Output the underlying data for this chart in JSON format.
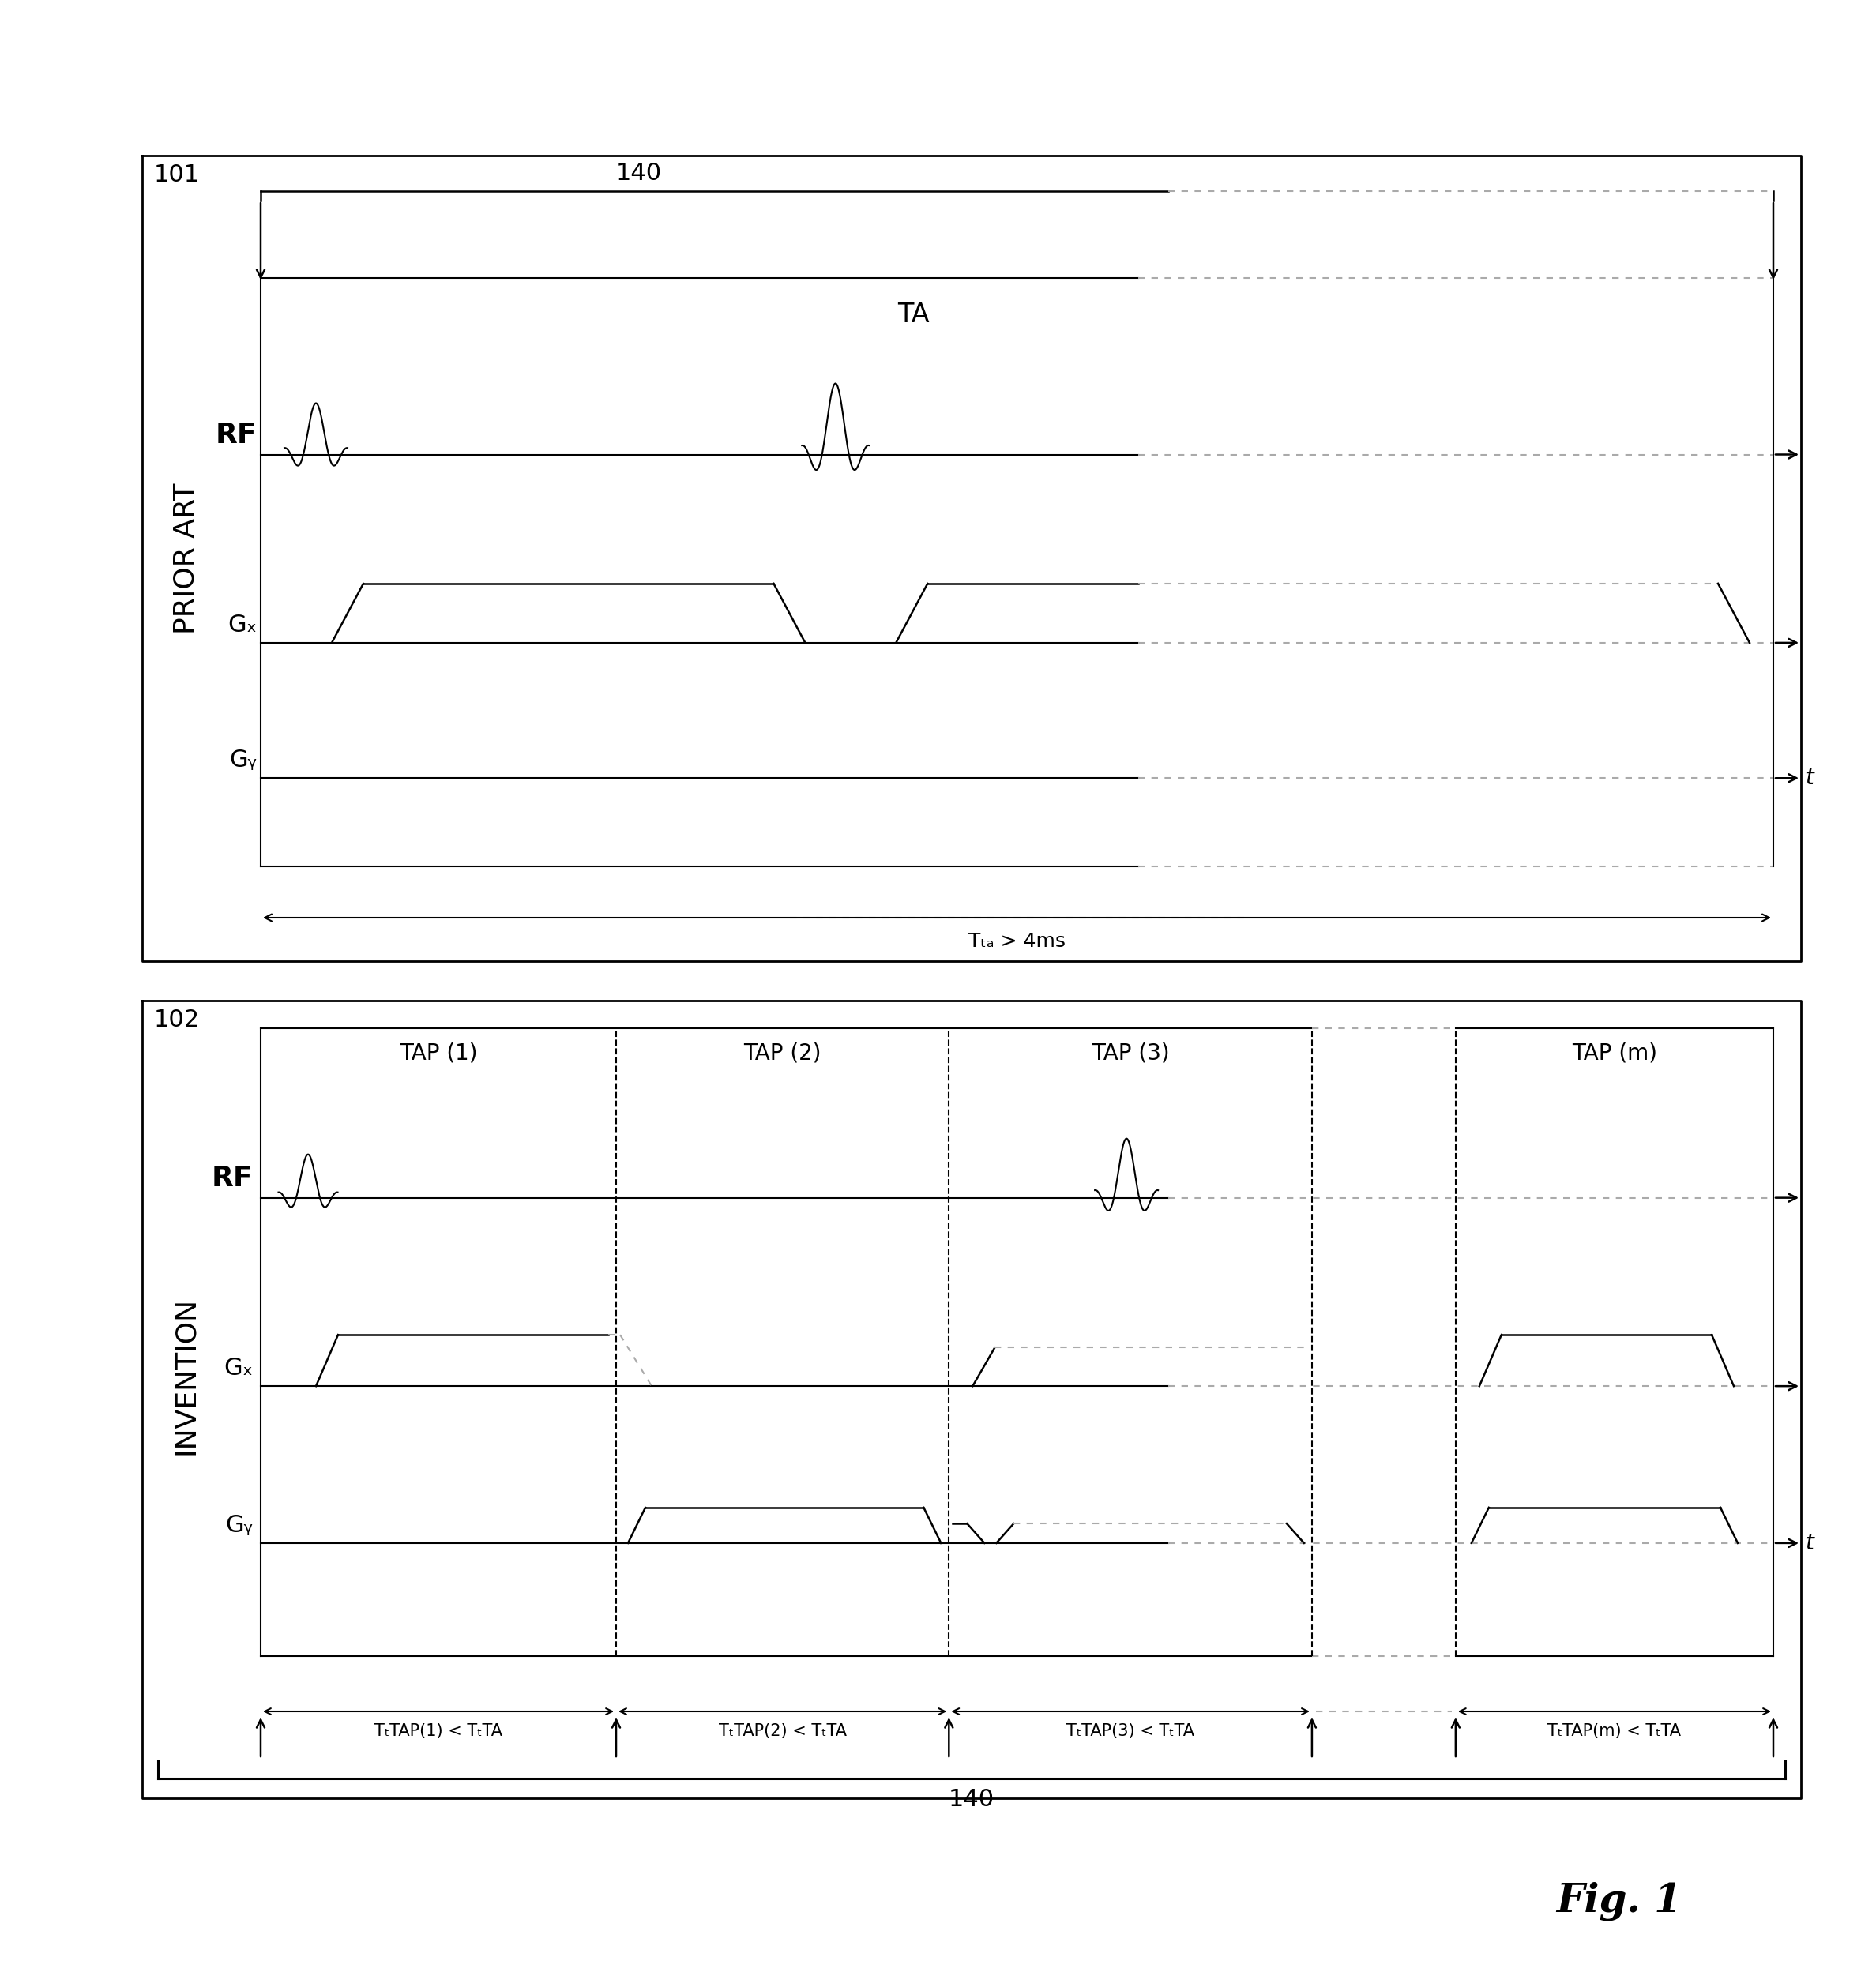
{
  "fig_width": 23.75,
  "fig_height": 24.97,
  "bg_color": "#ffffff",
  "line_color": "#000000",
  "dashed_color": "#aaaaaa",
  "prior_art_label": "PRIOR ART",
  "invention_label": "INVENTION",
  "fig_label": "Fig. 1",
  "box101_label": "101",
  "box102_label": "102",
  "label_140": "140",
  "label_TA": "TA",
  "label_RF": "RF",
  "label_Gx": "Gₓ",
  "label_Gy": "Gᵧ",
  "label_t": "t",
  "label_TTA": "Tₜₐ > 4ms",
  "tap_labels": [
    "TAP (1)",
    "TAP (2)",
    "TAP (3)",
    "TAP (m)"
  ],
  "tap_time_labels": [
    "TₜTAP(1) < TₜTA",
    "TₜTAP(2) < TₜTA",
    "TₜTAP(3) < TₜTA",
    "TₜTAP(m) < TₜTA"
  ]
}
